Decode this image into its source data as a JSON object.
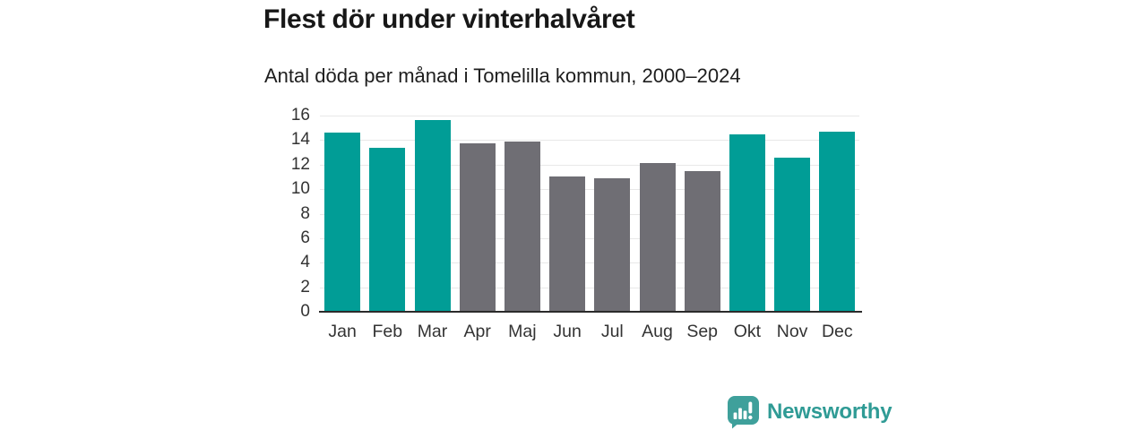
{
  "page": {
    "background": "#FFFFFF"
  },
  "header": {
    "title": "Flest dör under vinterhalvåret",
    "subtitle": "Antal döda per månad i Tomelilla kommun, 2000–2024"
  },
  "chart_data": {
    "type": "bar",
    "title": "Flest dör under vinterhalvåret",
    "subtitle": "Antal döda per månad i Tomelilla kommun, 2000–2024",
    "categories": [
      "Jan",
      "Feb",
      "Mar",
      "Apr",
      "Maj",
      "Jun",
      "Jul",
      "Aug",
      "Sep",
      "Okt",
      "Nov",
      "Dec"
    ],
    "values": [
      14.6,
      13.4,
      15.6,
      13.7,
      13.9,
      11.0,
      10.9,
      12.1,
      11.5,
      14.5,
      12.6,
      14.7
    ],
    "bar_color_keys": [
      "winter",
      "winter",
      "winter",
      "summer",
      "summer",
      "summer",
      "summer",
      "summer",
      "summer",
      "winter",
      "winter",
      "winter"
    ],
    "palette": {
      "winter": "#019D96",
      "summer": "#6F6E74"
    },
    "xlabel": "",
    "ylabel": "",
    "ylim": [
      0,
      16
    ],
    "yticks": [
      0,
      2,
      4,
      6,
      8,
      10,
      12,
      14,
      16
    ],
    "grid": true,
    "grid_color": "#E8E8E8",
    "axis_color": "#2B2B2B",
    "tick_color": "#333333",
    "legend": "none"
  },
  "footer": {
    "brand": "Newsworthy",
    "brand_color": "#2F9B95",
    "logo_color": "#3FA09B",
    "logo_icon": "newsworthy-logo"
  }
}
